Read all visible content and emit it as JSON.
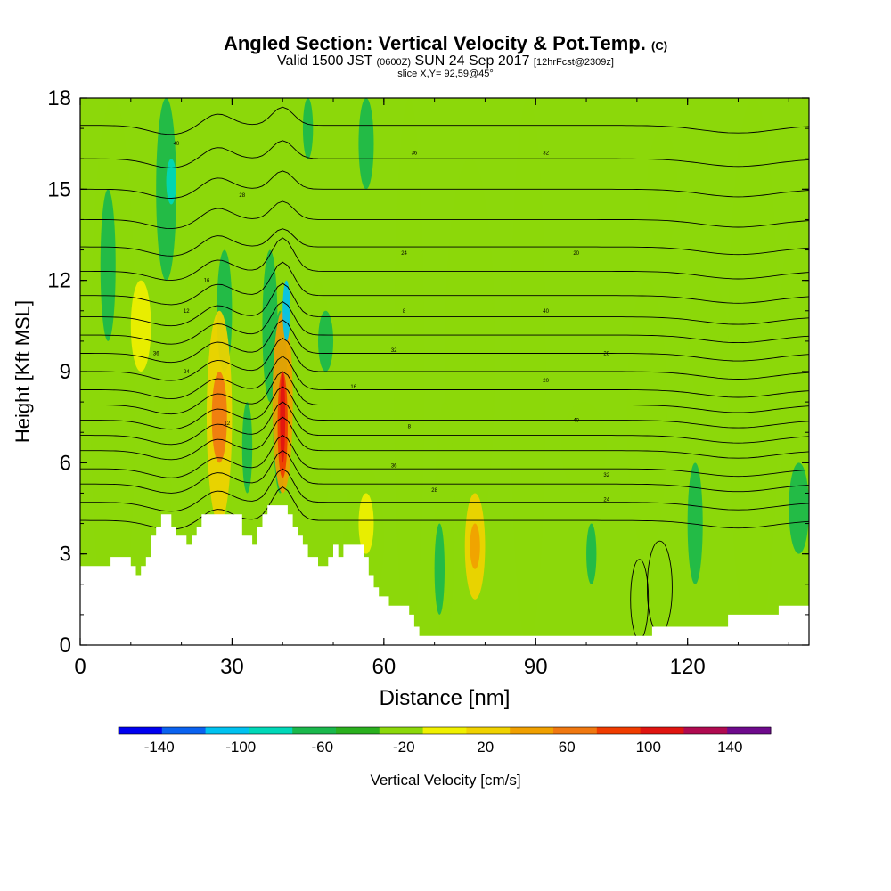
{
  "chart_data": {
    "type": "heatmap",
    "title": "Angled Section: Vertical Velocity & Pot.Temp.",
    "title_suffix": "(C)",
    "subtitle_valid_a": "Valid 1500 JST",
    "subtitle_valid_b": "(0600Z)",
    "subtitle_valid_c": "SUN 24 Sep 2017",
    "subtitle_fcst": "[12hrFcst@2309z]",
    "subtitle_slice": "slice X,Y= 92,59@45°",
    "xlabel": "Distance [nm]",
    "ylabel": "Height [Kft MSL]",
    "xlim": [
      0,
      144
    ],
    "ylim": [
      0,
      18
    ],
    "xticks": [
      0,
      30,
      60,
      90,
      120
    ],
    "yticks": [
      0,
      3,
      6,
      9,
      12,
      15,
      18
    ],
    "colorbar_label": "Vertical Velocity [cm/s]",
    "colorbar_ticks": [
      -140,
      -100,
      -60,
      -20,
      20,
      60,
      100,
      140
    ],
    "colorbar_colors": [
      "#0000f0",
      "#0a62f0",
      "#00c2f0",
      "#00d8b8",
      "#1ab84c",
      "#2ab01e",
      "#8cd80a",
      "#f0f000",
      "#f0d200",
      "#f0a000",
      "#f07810",
      "#f03c00",
      "#e01410",
      "#b00a50",
      "#6e0a8c"
    ],
    "plot_background": "#8cd80a",
    "terrain_profile": [
      [
        0,
        2.6
      ],
      [
        6,
        2.6
      ],
      [
        6,
        2.9
      ],
      [
        10,
        2.9
      ],
      [
        10,
        2.6
      ],
      [
        11,
        2.6
      ],
      [
        11,
        2.3
      ],
      [
        12,
        2.3
      ],
      [
        12,
        2.6
      ],
      [
        13,
        2.6
      ],
      [
        13,
        2.9
      ],
      [
        14,
        2.9
      ],
      [
        14,
        3.6
      ],
      [
        15,
        3.6
      ],
      [
        15,
        3.9
      ],
      [
        16,
        3.9
      ],
      [
        16,
        4.3
      ],
      [
        18,
        4.3
      ],
      [
        18,
        3.9
      ],
      [
        19,
        3.9
      ],
      [
        19,
        3.6
      ],
      [
        21,
        3.6
      ],
      [
        21,
        3.3
      ],
      [
        22,
        3.3
      ],
      [
        22,
        3.6
      ],
      [
        23,
        3.6
      ],
      [
        23,
        3.9
      ],
      [
        24,
        3.9
      ],
      [
        24,
        4.3
      ],
      [
        32,
        4.3
      ],
      [
        32,
        3.6
      ],
      [
        34,
        3.6
      ],
      [
        34,
        3.3
      ],
      [
        35,
        3.3
      ],
      [
        35,
        3.9
      ],
      [
        36,
        3.9
      ],
      [
        36,
        4.3
      ],
      [
        37,
        4.3
      ],
      [
        37,
        4.6
      ],
      [
        41,
        4.6
      ],
      [
        41,
        4.3
      ],
      [
        42,
        4.3
      ],
      [
        42,
        3.9
      ],
      [
        43,
        3.9
      ],
      [
        43,
        3.6
      ],
      [
        44,
        3.6
      ],
      [
        44,
        3.3
      ],
      [
        45,
        3.3
      ],
      [
        45,
        2.9
      ],
      [
        47,
        2.9
      ],
      [
        47,
        2.6
      ],
      [
        49,
        2.6
      ],
      [
        49,
        2.9
      ],
      [
        50,
        2.9
      ],
      [
        50,
        3.3
      ],
      [
        51,
        3.3
      ],
      [
        51,
        2.9
      ],
      [
        52,
        2.9
      ],
      [
        52,
        3.3
      ],
      [
        56,
        3.3
      ],
      [
        56,
        2.9
      ],
      [
        57,
        2.9
      ],
      [
        57,
        2.3
      ],
      [
        58,
        2.3
      ],
      [
        58,
        1.9
      ],
      [
        59,
        1.9
      ],
      [
        59,
        1.6
      ],
      [
        61,
        1.6
      ],
      [
        61,
        1.3
      ],
      [
        65,
        1.3
      ],
      [
        65,
        1.0
      ],
      [
        66,
        1.0
      ],
      [
        66,
        0.6
      ],
      [
        67,
        0.6
      ],
      [
        67,
        0.3
      ],
      [
        113,
        0.3
      ],
      [
        113,
        0.6
      ],
      [
        128,
        0.6
      ],
      [
        128,
        1.0
      ],
      [
        138,
        1.0
      ],
      [
        138,
        1.3
      ],
      [
        144,
        1.3
      ]
    ],
    "contour_labels": [
      "40",
      "36",
      "32",
      "28",
      "24",
      "20",
      "16",
      "12",
      "8"
    ],
    "legend_placement": "bottom"
  }
}
